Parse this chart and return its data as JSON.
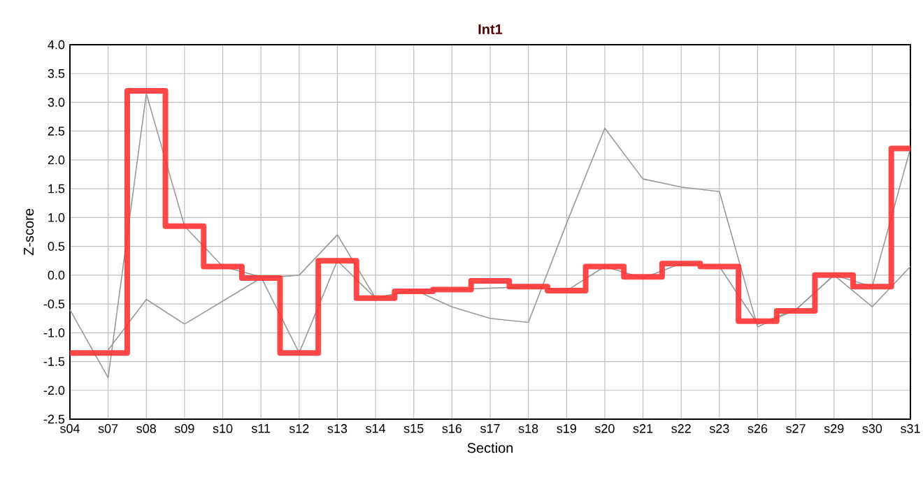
{
  "chart_data": {
    "type": "line",
    "title": "Int1",
    "xlabel": "Section",
    "ylabel": "Z-score",
    "categories": [
      "s04",
      "s07",
      "s08",
      "s09",
      "s10",
      "s11",
      "s12",
      "s13",
      "s14",
      "s15",
      "s16",
      "s17",
      "s18",
      "s19",
      "s20",
      "s21",
      "s22",
      "s23",
      "s26",
      "s27",
      "s29",
      "s30",
      "s31"
    ],
    "series": [
      {
        "color": "#999999",
        "values": [
          -0.6,
          -1.78,
          3.15,
          0.85,
          0.15,
          -0.03,
          -1.35,
          0.25,
          -0.4,
          -0.25,
          -0.25,
          null,
          -0.2,
          -0.27,
          0.15,
          -0.05,
          0.2,
          0.15,
          -0.85,
          -0.6,
          0.0,
          -0.2,
          2.2
        ]
      },
      {
        "color": "#999999",
        "values": [
          null,
          -1.3,
          -0.42,
          -0.85,
          -0.45,
          -0.05,
          0.0,
          0.7,
          -0.4,
          -0.25,
          -0.55,
          -0.75,
          -0.82,
          0.9,
          2.55,
          1.67,
          1.53,
          1.45,
          -0.9,
          -0.6,
          0.0,
          -0.55,
          0.15
        ]
      },
      {
        "type": "step",
        "color": "#ff3333",
        "values": [
          -1.35,
          -1.35,
          3.2,
          0.85,
          0.15,
          -0.05,
          -1.35,
          0.25,
          -0.4,
          -0.28,
          -0.25,
          -0.1,
          -0.2,
          -0.27,
          0.15,
          -0.03,
          0.2,
          0.15,
          -0.8,
          -0.62,
          0.0,
          -0.2,
          2.2
        ]
      }
    ],
    "ylim": [
      -2.5,
      4.0
    ],
    "yticks": [
      {
        "value": -2.5,
        "label": "-2.5"
      },
      {
        "value": -2.0,
        "label": "-2.0"
      },
      {
        "value": -1.5,
        "label": "-1.5"
      },
      {
        "value": -1.0,
        "label": "-1.0"
      },
      {
        "value": -0.5,
        "label": "-0.5"
      },
      {
        "value": 0.0,
        "label": "0.0"
      },
      {
        "value": 0.5,
        "label": "0.5"
      },
      {
        "value": 1.0,
        "label": "1.0"
      },
      {
        "value": 1.5,
        "label": "1.5"
      },
      {
        "value": 2.0,
        "label": "2.0"
      },
      {
        "value": 2.5,
        "label": "2.5"
      },
      {
        "value": 3.0,
        "label": "3.0"
      },
      {
        "value": 3.5,
        "label": "3.5"
      },
      {
        "value": 4.0,
        "label": "4.0"
      }
    ],
    "grid": true,
    "marker": "none",
    "line_style": "solid"
  }
}
